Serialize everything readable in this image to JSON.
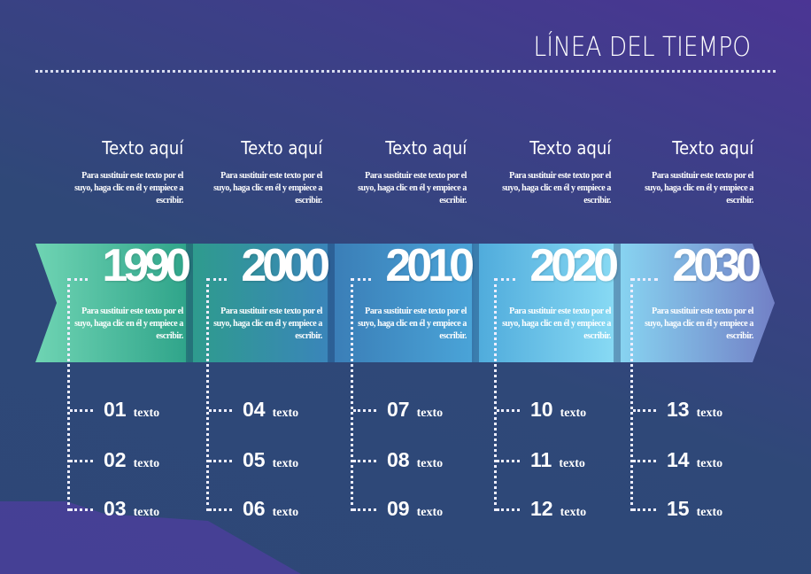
{
  "title": "LÍNEA DEL TIEMPO",
  "colors": {
    "background": "#2d4777",
    "accent_purple": "#4b3594"
  },
  "columns": [
    {
      "heading": "Texto aquí",
      "top_text": "Para sustituir este texto por el suyo, haga clic en él y empiece a escribir.",
      "year": "1990",
      "band_text": "Para sustituir este texto por el suyo, haga clic en él y empiece a escribir.",
      "items": [
        {
          "num": "01",
          "label": "texto"
        },
        {
          "num": "02",
          "label": "texto"
        },
        {
          "num": "03",
          "label": "texto"
        }
      ],
      "colors": [
        "#6fd4b3",
        "#2fa48a"
      ]
    },
    {
      "heading": "Texto aquí",
      "top_text": "Para sustituir este texto por el suyo, haga clic en él y empiece a escribir.",
      "year": "2000",
      "band_text": "Para sustituir este texto por el suyo, haga clic en él y empiece a escribir.",
      "items": [
        {
          "num": "04",
          "label": "texto"
        },
        {
          "num": "05",
          "label": "texto"
        },
        {
          "num": "06",
          "label": "texto"
        }
      ],
      "colors": [
        "#2e9c8c",
        "#3a85ba"
      ]
    },
    {
      "heading": "Texto aquí",
      "top_text": "Para sustituir este texto por el suyo, haga clic en él y empiece a escribir.",
      "year": "2010",
      "band_text": "Para sustituir este texto por el suyo, haga clic en él y empiece a escribir.",
      "items": [
        {
          "num": "07",
          "label": "texto"
        },
        {
          "num": "08",
          "label": "texto"
        },
        {
          "num": "09",
          "label": "texto"
        }
      ],
      "colors": [
        "#3a7db6",
        "#4aa4d8"
      ]
    },
    {
      "heading": "Texto aquí",
      "top_text": "Para sustituir este texto por el suyo, haga clic en él y empiece a escribir.",
      "year": "2020",
      "band_text": "Para sustituir este texto por el suyo, haga clic en él y empiece a escribir.",
      "items": [
        {
          "num": "10",
          "label": "texto"
        },
        {
          "num": "11",
          "label": "texto"
        },
        {
          "num": "12",
          "label": "texto"
        }
      ],
      "colors": [
        "#4eaadb",
        "#88daf4"
      ]
    },
    {
      "heading": "Texto aquí",
      "top_text": "Para sustituir este texto por el suyo, haga clic en él y empiece a escribir.",
      "year": "2030",
      "band_text": "Para sustituir este texto por el suyo, haga clic en él y empiece a escribir.",
      "items": [
        {
          "num": "13",
          "label": "texto"
        },
        {
          "num": "14",
          "label": "texto"
        },
        {
          "num": "15",
          "label": "texto"
        }
      ],
      "colors": [
        "#88d6f2",
        "#7280c6"
      ]
    }
  ]
}
